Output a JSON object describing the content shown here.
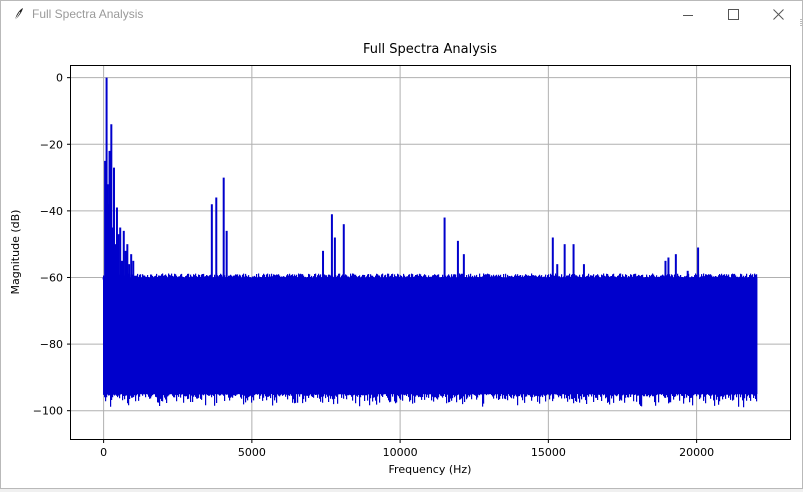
{
  "window": {
    "title": "Full Spectra Analysis",
    "icon": "feather-icon",
    "controls": [
      "minimize-icon",
      "maximize-icon",
      "close-icon"
    ]
  },
  "colors": {
    "line": "#0000cc",
    "grid": "#b0b0b0",
    "axes": "#000000"
  },
  "chart_data": {
    "type": "line",
    "title": "Full Spectra Analysis",
    "xlabel": "Frequency (Hz)",
    "ylabel": "Magnitude (dB)",
    "xlim": [
      -1100,
      23150
    ],
    "ylim": [
      -108.5,
      3.5
    ],
    "xticks": [
      0,
      5000,
      10000,
      15000,
      20000
    ],
    "yticks": [
      0,
      -20,
      -40,
      -60,
      -80,
      -100
    ],
    "grid": true,
    "noise_floor": {
      "x_range": [
        0,
        22050
      ],
      "upper_db": -60,
      "lower_db": -95
    },
    "series": [
      {
        "x": [
          0,
          50,
          100,
          140,
          170,
          200,
          230,
          260,
          300,
          350,
          400,
          450,
          500,
          560,
          620,
          680,
          740,
          800,
          860,
          930,
          1000
        ],
        "y": [
          -60,
          -25,
          0,
          -32,
          -38,
          -22,
          -48,
          -14,
          -45,
          -27,
          -50,
          -39,
          -47,
          -45,
          -55,
          -46,
          -52,
          -50,
          -56,
          -53,
          -55
        ]
      },
      {
        "x": [
          3650,
          3800,
          4050,
          4150,
          7400,
          7700,
          7800,
          8100,
          11500,
          11950,
          12150,
          15150,
          15300,
          15550,
          15850,
          16200,
          18950,
          19050,
          19300,
          19700,
          20050
        ],
        "y": [
          -38,
          -36,
          -30,
          -46,
          -52,
          -41,
          -48,
          -44,
          -42,
          -49,
          -53,
          -48,
          -56,
          -50,
          -50,
          -56,
          -55,
          -54,
          -53,
          -58,
          -51
        ]
      }
    ]
  }
}
